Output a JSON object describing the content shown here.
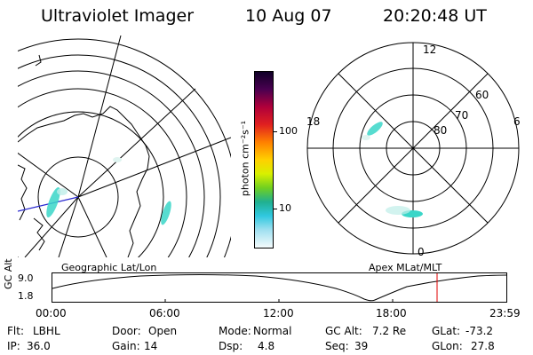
{
  "header": {
    "instrument": "Ultraviolet Imager",
    "date": "10 Aug 07",
    "time": "20:20:48 UT"
  },
  "colorbar": {
    "unit_label": "photon cm⁻²s⁻¹",
    "ticks": [
      "100",
      "10"
    ]
  },
  "polar": {
    "labels": {
      "top": "12",
      "bottom": "0",
      "left": "18",
      "right": "6"
    },
    "lat_labels": [
      "60",
      "70",
      "80"
    ]
  },
  "panel_titles": {
    "left": "Geographic Lat/Lon",
    "right": "Apex MLat/MLT"
  },
  "timeline": {
    "axis_label": "GC Alt",
    "y_ticks": [
      "9.0",
      "1.8"
    ],
    "x_ticks": [
      "00:00",
      "06:00",
      "12:00",
      "18:00",
      "23:59"
    ],
    "marker_color": "#e00000"
  },
  "info": {
    "row1": [
      {
        "label": "Flt:",
        "value": "LBHL"
      },
      {
        "label": "Door:",
        "value": "Open"
      },
      {
        "label": "Mode:",
        "value": "Normal"
      },
      {
        "label": "GC Alt:",
        "value": "7.2 Re"
      },
      {
        "label": "GLat:",
        "value": "-73.2"
      }
    ],
    "row2": [
      {
        "label": "IP:",
        "value": "36.0"
      },
      {
        "label": "Gain:",
        "value": "14"
      },
      {
        "label": "Dsp:",
        "value": "4.8"
      },
      {
        "label": "Seq:",
        "value": "39"
      },
      {
        "label": "GLon:",
        "value": "27.8"
      }
    ]
  },
  "colors": {
    "aurora": "#3ad6c8",
    "track": "#2a2ad0"
  }
}
